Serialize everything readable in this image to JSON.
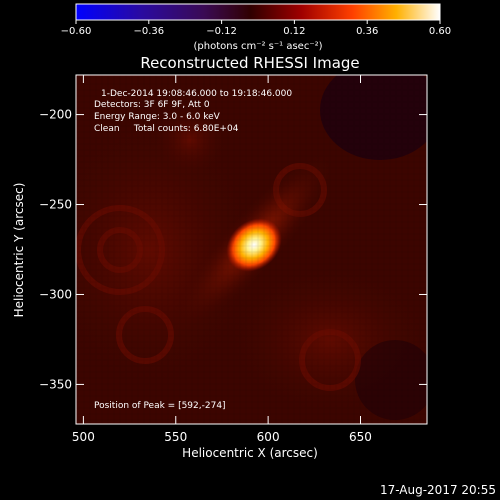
{
  "chart_data": {
    "type": "heatmap",
    "title": "Reconstructed RHESSI Image",
    "xlabel": "Heliocentric X (arcsec)",
    "ylabel": "Heliocentric Y (arcsec)",
    "xlim": [
      496,
      686
    ],
    "ylim": [
      -372,
      -178
    ],
    "x_ticks": [
      500,
      550,
      600,
      650
    ],
    "y_ticks": [
      -200,
      -250,
      -300,
      -350
    ],
    "peak": {
      "x": 592,
      "y": -274,
      "value": 0.6
    },
    "colorbar": {
      "min": -0.6,
      "max": 0.6,
      "ticks": [
        "-0.60",
        "-0.36",
        "-0.12",
        "0.12",
        "0.36",
        "0.60"
      ],
      "unit_label": "(photons cm⁻² s⁻¹ asec⁻²)"
    },
    "annotations": [
      "1-Dec-2014 19:08:46.000 to 19:18:46.000",
      "Detectors: 3F 6F 9F, Att 0",
      "Energy Range: 3.0 - 6.0 keV",
      "Clean     Total counts: 6.80E+04"
    ],
    "peak_label": "Position of Peak = [592,-274]",
    "date_stamp": "17-Aug-2017 20:55"
  }
}
